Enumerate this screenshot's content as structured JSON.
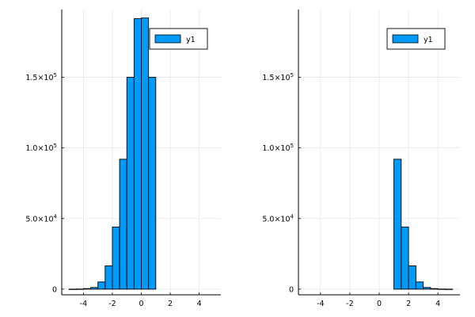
{
  "chart_data": [
    {
      "type": "bar",
      "bin_width": 0.5,
      "bars": [
        {
          "x0": -5.0,
          "x1": -4.5,
          "y": 22
        },
        {
          "x0": -4.5,
          "x1": -4.0,
          "y": 112
        },
        {
          "x0": -4.0,
          "x1": -3.5,
          "y": 400
        },
        {
          "x0": -3.5,
          "x1": -3.0,
          "y": 1200
        },
        {
          "x0": -3.0,
          "x1": -2.5,
          "y": 5100
        },
        {
          "x0": -2.5,
          "x1": -2.0,
          "y": 16500
        },
        {
          "x0": -2.0,
          "x1": -1.5,
          "y": 44000
        },
        {
          "x0": -1.5,
          "x1": -1.0,
          "y": 92000
        },
        {
          "x0": -1.0,
          "x1": -0.5,
          "y": 150000
        },
        {
          "x0": -0.5,
          "x1": 0.0,
          "y": 191500
        },
        {
          "x0": 0.0,
          "x1": 0.5,
          "y": 192000
        },
        {
          "x0": 0.5,
          "x1": 1.0,
          "y": 150000
        }
      ],
      "series": [
        {
          "name": "y1",
          "color": "#009af9"
        }
      ],
      "xlim": [
        -5.5,
        5.5
      ],
      "ylim": [
        -4000,
        198000
      ],
      "xticks": [
        {
          "value": -4,
          "label": "-4"
        },
        {
          "value": -2,
          "label": "-2"
        },
        {
          "value": 0,
          "label": "0"
        },
        {
          "value": 2,
          "label": "2"
        },
        {
          "value": 4,
          "label": "4"
        }
      ],
      "yticks": [
        {
          "value": 0,
          "mant": "0",
          "exp": ""
        },
        {
          "value": 50000,
          "mant": "5.0×10",
          "exp": "4"
        },
        {
          "value": 100000,
          "mant": "1.0×10",
          "exp": "5"
        },
        {
          "value": 150000,
          "mant": "1.5×10",
          "exp": "5"
        }
      ],
      "grid": true,
      "legend_position": "top-right"
    },
    {
      "type": "bar",
      "bin_width": 0.5,
      "bars": [
        {
          "x0": 1.0,
          "x1": 1.5,
          "y": 92000
        },
        {
          "x0": 1.5,
          "x1": 2.0,
          "y": 44000
        },
        {
          "x0": 2.0,
          "x1": 2.5,
          "y": 16500
        },
        {
          "x0": 2.5,
          "x1": 3.0,
          "y": 5100
        },
        {
          "x0": 3.0,
          "x1": 3.5,
          "y": 1200
        },
        {
          "x0": 3.5,
          "x1": 4.0,
          "y": 400
        },
        {
          "x0": 4.0,
          "x1": 4.5,
          "y": 112
        },
        {
          "x0": 4.5,
          "x1": 5.0,
          "y": 22
        }
      ],
      "series": [
        {
          "name": "y1",
          "color": "#009af9"
        }
      ],
      "xlim": [
        -5.5,
        5.5
      ],
      "ylim": [
        -4000,
        198000
      ],
      "xticks": [
        {
          "value": -4,
          "label": "-4"
        },
        {
          "value": -2,
          "label": "-2"
        },
        {
          "value": 0,
          "label": "0"
        },
        {
          "value": 2,
          "label": "2"
        },
        {
          "value": 4,
          "label": "4"
        }
      ],
      "yticks": [
        {
          "value": 0,
          "mant": "0",
          "exp": ""
        },
        {
          "value": 50000,
          "mant": "5.0×10",
          "exp": "4"
        },
        {
          "value": 100000,
          "mant": "1.0×10",
          "exp": "5"
        },
        {
          "value": 150000,
          "mant": "1.5×10",
          "exp": "5"
        }
      ],
      "grid": true,
      "legend_position": "top-right"
    }
  ]
}
